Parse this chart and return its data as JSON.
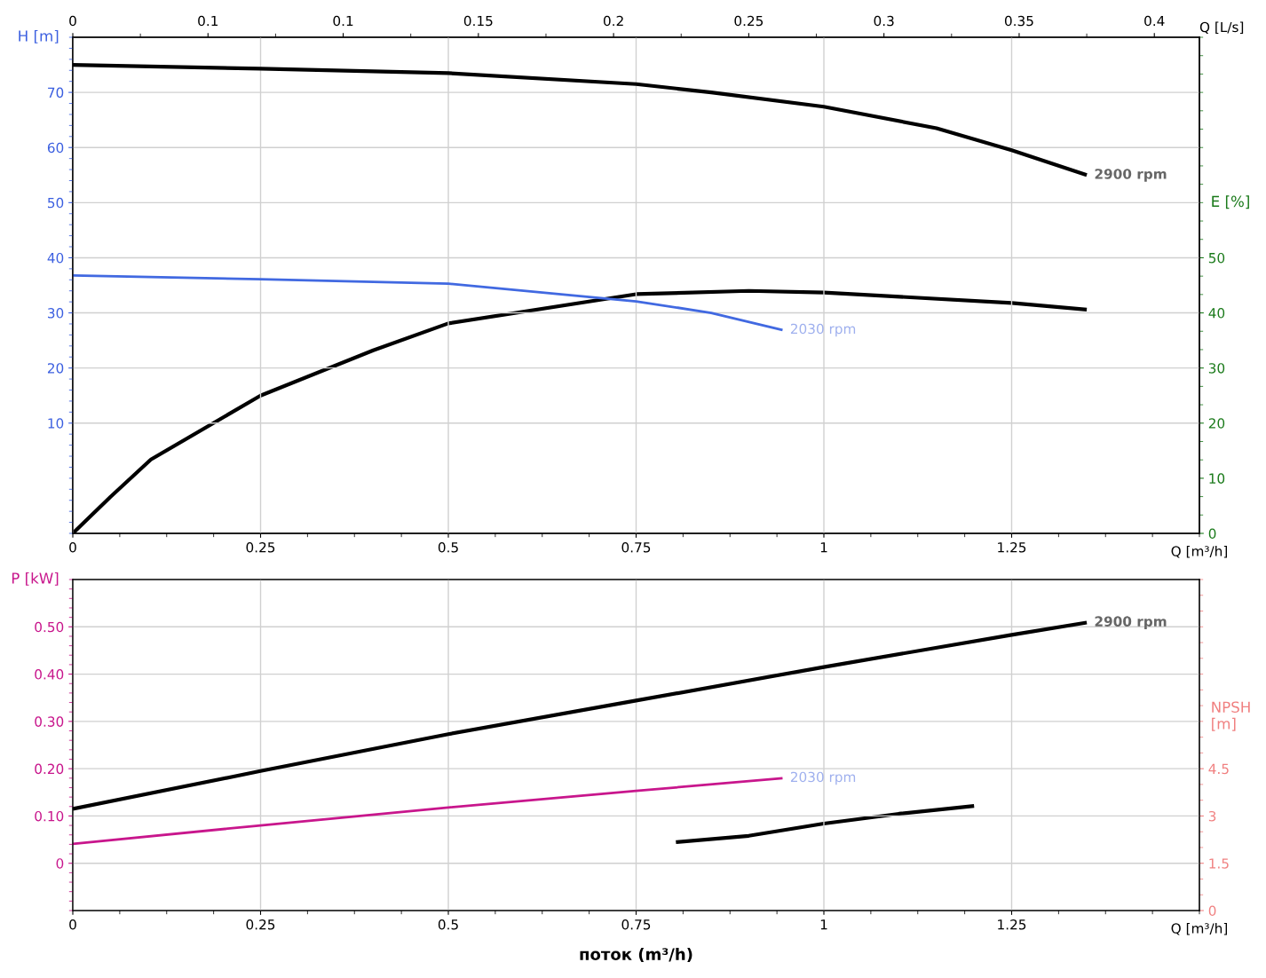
{
  "chart_data": [
    {
      "type": "line",
      "xlabel": "Q [m³/h]",
      "ylabel": "H [m]",
      "y2label": "E [%]",
      "x2label": "Q [L/s]",
      "xlim": [
        0,
        1.5
      ],
      "xticks": [
        0,
        0.25,
        0.5,
        0.75,
        1,
        1.25
      ],
      "x2lim": [
        0,
        0.41667
      ],
      "x2ticks": [
        0,
        {
          "value": 0.05,
          "label": "0.1"
        },
        0.1,
        0.15,
        0.2,
        0.25,
        0.3,
        0.35,
        0.4
      ],
      "ylim": [
        -10,
        80
      ],
      "yticks": [
        10,
        20,
        30,
        40,
        50,
        60,
        70
      ],
      "y2lim": [
        0,
        90
      ],
      "y2ticks": [
        0,
        10,
        20,
        30,
        40,
        50
      ],
      "grid": true,
      "series": [
        {
          "name": "2900 rpm",
          "color": "#000000",
          "x": [
            0,
            0.25,
            0.5,
            0.75,
            0.85,
            1.0,
            1.15,
            1.25,
            1.35
          ],
          "values": [
            75,
            74.3,
            73.5,
            71.5,
            70,
            67.4,
            63.5,
            59.5,
            55
          ]
        },
        {
          "name": "2030 rpm",
          "color": "#4169e1",
          "x": [
            0,
            0.25,
            0.5,
            0.75,
            0.85,
            0.945
          ],
          "values": [
            36.8,
            36.1,
            35.3,
            32.1,
            30,
            26.9
          ]
        },
        {
          "color": "#000000",
          "axis": "y2",
          "x": [
            0,
            0.05,
            0.104,
            0.25,
            0.4,
            0.5,
            0.75,
            0.9,
            1.0,
            1.25,
            1.35
          ],
          "values": [
            0,
            6.6,
            13.4,
            25,
            33.2,
            38.1,
            43.4,
            44.0,
            43.7,
            41.8,
            40.6
          ]
        }
      ]
    },
    {
      "type": "line",
      "xlabel": "Q [m³/h]",
      "ylabel": "P [kW]",
      "y2label": "NPSH [m]",
      "annotations": [
        "поток (m³/h)"
      ],
      "xlim": [
        0,
        1.5
      ],
      "xticks": [
        0,
        0.25,
        0.5,
        0.75,
        1,
        1.25
      ],
      "ylim": [
        -0.1,
        0.6
      ],
      "yticks": [
        0,
        {
          "value": 0.1,
          "label": "0.10"
        },
        {
          "value": 0.2,
          "label": "0.20"
        },
        {
          "value": 0.3,
          "label": "0.30"
        },
        {
          "value": 0.4,
          "label": "0.40"
        },
        {
          "value": 0.5,
          "label": "0.50"
        }
      ],
      "y2lim": [
        0,
        10.5
      ],
      "y2ticks": [
        0,
        1.5,
        3,
        4.5
      ],
      "grid": true,
      "series": [
        {
          "name": "2900 rpm",
          "color": "#000000",
          "x": [
            0,
            0.25,
            0.5,
            0.75,
            1.0,
            1.25,
            1.35
          ],
          "values": [
            0.115,
            0.195,
            0.273,
            0.344,
            0.415,
            0.483,
            0.509
          ]
        },
        {
          "name": "2030 rpm",
          "color": "#c8168c",
          "x": [
            0,
            0.25,
            0.5,
            0.75,
            0.945
          ],
          "values": [
            0.041,
            0.08,
            0.118,
            0.153,
            0.18
          ]
        },
        {
          "color": "#000000",
          "axis": "y2",
          "x": [
            0.803,
            0.9,
            1.0,
            1.1,
            1.2
          ],
          "values": [
            2.17,
            2.37,
            2.76,
            3.07,
            3.32
          ]
        }
      ]
    }
  ]
}
